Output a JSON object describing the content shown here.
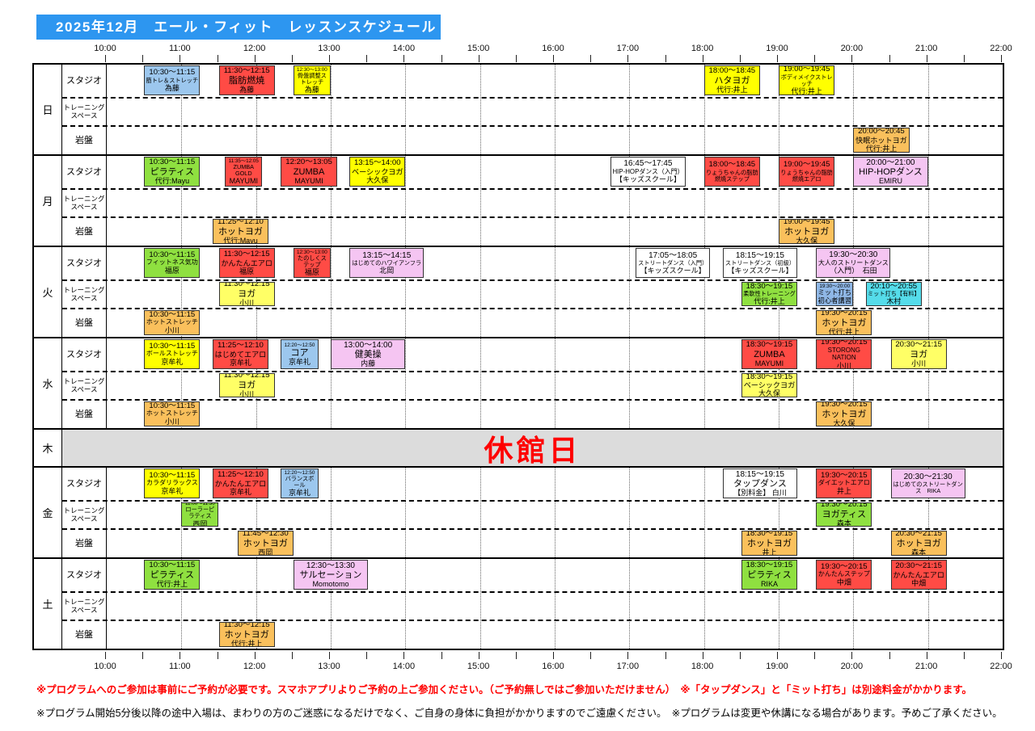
{
  "title": "2025年12月　エール・フィット　レッスンスケジュール",
  "axis": {
    "hours": [
      "10:00",
      "11:00",
      "12:00",
      "13:00",
      "14:00",
      "15:00",
      "16:00",
      "17:00",
      "18:00",
      "19:00",
      "20:00",
      "21:00",
      "22:00"
    ]
  },
  "rooms": [
    {
      "key": "studio",
      "label": "スタジオ"
    },
    {
      "key": "training",
      "label": "トレーニング\nスペース"
    },
    {
      "key": "ganban",
      "label": "岩盤"
    }
  ],
  "closed_label": "休館日",
  "colors": {
    "banner": "#2D96F0",
    "blue": "#9CC7EE",
    "periwinkle": "#8FB7E6",
    "red": "#FF4B45",
    "yellow": "#FFFF00",
    "paleyellow": "#FFFF66",
    "orange": "#FAC05C",
    "green": "#8FE040",
    "pink": "#F5C5F2",
    "cyan": "#55DCEA",
    "white": "#FFFFFF",
    "closed_bg": "#DCDCDC",
    "closed_text": "#FF0000",
    "note_warning": "#FF0000",
    "note_normal": "#000000"
  },
  "days": [
    {
      "label": "日",
      "closed": false,
      "rows": {
        "studio": [
          {
            "start": "10:30",
            "end": "11:15",
            "time": "10:30～11:15",
            "name": "筋トレ＆ストレッチ",
            "teacher": "為藤",
            "color": "blue"
          },
          {
            "start": "11:30",
            "end": "12:15",
            "time": "11:30～12:15",
            "name": "脂肪燃焼",
            "teacher": "為藤",
            "color": "red"
          },
          {
            "start": "12:30",
            "end": "13:00",
            "time": "12:30～13:00",
            "name": "骨盤調整ストレッチ",
            "teacher": "為藤",
            "color": "yellow"
          },
          {
            "start": "18:00",
            "end": "18:45",
            "time": "18:00～18:45",
            "name": "ハタヨガ",
            "teacher": "代行:井上",
            "color": "yellow"
          },
          {
            "start": "19:00",
            "end": "19:45",
            "time": "19:00～19:45",
            "name": "ボディメイクストレッチ",
            "teacher": "代行:井上",
            "color": "yellow"
          }
        ],
        "training": [],
        "ganban": [
          {
            "start": "20:00",
            "end": "20:45",
            "time": "20:00～20:45",
            "name": "快眠ホットヨガ",
            "teacher": "代行:井上",
            "color": "orange"
          }
        ]
      }
    },
    {
      "label": "月",
      "closed": false,
      "rows": {
        "studio": [
          {
            "start": "10:30",
            "end": "11:15",
            "time": "10:30～11:15",
            "name": "ピラティス",
            "teacher": "代行:Mayu",
            "color": "green"
          },
          {
            "start": "11:35",
            "end": "12:05",
            "time": "11:35～12:05",
            "name": "ZUMBA GOLD",
            "teacher": "MAYUMI",
            "color": "red"
          },
          {
            "start": "12:20",
            "end": "13:05",
            "time": "12:20～13:05",
            "name": "ZUMBA",
            "teacher": "MAYUMI",
            "color": "red"
          },
          {
            "start": "13:15",
            "end": "14:00",
            "time": "13:15～14:00",
            "name": "ベーシックヨガ",
            "teacher": "大久保",
            "color": "yellow"
          },
          {
            "start": "16:45",
            "end": "17:45",
            "time": "16:45～17:45",
            "name": "HIP-HOPダンス（入門）",
            "teacher": "【キッズスクール】",
            "color": "white"
          },
          {
            "start": "18:00",
            "end": "18:45",
            "time": "18:00～18:45",
            "name": "りょうちゃんの脂肪燃焼ステップ",
            "teacher": "",
            "color": "red"
          },
          {
            "start": "19:00",
            "end": "19:45",
            "time": "19:00～19:45",
            "name": "りょうちゃんの脂肪燃焼エアロ",
            "teacher": "",
            "color": "red"
          },
          {
            "start": "20:00",
            "end": "21:00",
            "time": "20:00～21:00",
            "name": "HIP-HOPダンス",
            "teacher": "EMIRU",
            "color": "pink"
          }
        ],
        "training": [],
        "ganban": [
          {
            "start": "11:25",
            "end": "12:10",
            "time": "11:25～12:10",
            "name": "ホットヨガ",
            "teacher": "代行:Mayu",
            "color": "orange"
          },
          {
            "start": "19:00",
            "end": "19:45",
            "time": "19:00～19:45",
            "name": "ホットヨガ",
            "teacher": "大久保",
            "color": "orange"
          }
        ]
      }
    },
    {
      "label": "火",
      "closed": false,
      "rows": {
        "studio": [
          {
            "start": "10:30",
            "end": "11:15",
            "time": "10:30～11:15",
            "name": "フィットネス気功",
            "teacher": "福原",
            "color": "green"
          },
          {
            "start": "11:30",
            "end": "12:15",
            "time": "11:30～12:15",
            "name": "かんたんエアロ",
            "teacher": "福原",
            "color": "red"
          },
          {
            "start": "12:30",
            "end": "13:00",
            "time": "12:30～13:00",
            "name": "たのしくステップ",
            "teacher": "福原",
            "color": "red"
          },
          {
            "start": "13:15",
            "end": "14:15",
            "time": "13:15～14:15",
            "name": "はじめてのハワイアンフラ",
            "teacher": "北岡",
            "color": "pink"
          },
          {
            "start": "17:05",
            "end": "18:05",
            "time": "17:05～18:05",
            "name": "ストリートダンス（入門）",
            "teacher": "【キッズスクール】",
            "color": "white"
          },
          {
            "start": "18:15",
            "end": "19:15",
            "time": "18:15～19:15",
            "name": "ストリートダンス（初級）",
            "teacher": "【キッズスクール】",
            "color": "white"
          },
          {
            "start": "19:30",
            "end": "20:30",
            "time": "19:30～20:30",
            "name": "大人のストリートダンス",
            "teacher": "（入門）　石田",
            "color": "pink"
          }
        ],
        "training": [
          {
            "start": "11:30",
            "end": "12:15",
            "time": "11:30～12:15",
            "name": "ヨガ",
            "teacher": "小川",
            "color": "paleyellow"
          },
          {
            "start": "18:30",
            "end": "19:15",
            "time": "18:30～19:15",
            "name": "柔軟性トレーニング",
            "teacher": "代行:井上",
            "color": "green"
          },
          {
            "start": "19:30",
            "end": "20:00",
            "time": "19:30～20:00",
            "name": "ミット打ち",
            "teacher": "初心者講習",
            "color": "periwinkle"
          },
          {
            "start": "20:10",
            "end": "20:55",
            "time": "20:10～20:55",
            "name": "ミット打ち【有料】",
            "teacher": "木村",
            "color": "cyan"
          }
        ],
        "ganban": [
          {
            "start": "10:30",
            "end": "11:15",
            "time": "10:30～11:15",
            "name": "ホットストレッチ",
            "teacher": "小川",
            "color": "orange"
          },
          {
            "start": "19:30",
            "end": "20:15",
            "time": "19:30～20:15",
            "name": "ホットヨガ",
            "teacher": "代行:井上",
            "color": "orange"
          }
        ]
      }
    },
    {
      "label": "水",
      "closed": false,
      "rows": {
        "studio": [
          {
            "start": "10:30",
            "end": "11:15",
            "time": "10:30～11:15",
            "name": "ボールストレッチ",
            "teacher": "京牟礼",
            "color": "yellow"
          },
          {
            "start": "11:25",
            "end": "12:10",
            "time": "11:25～12:10",
            "name": "はじめてエアロ",
            "teacher": "京牟礼",
            "color": "red"
          },
          {
            "start": "12:20",
            "end": "12:50",
            "time": "12:20～12:50",
            "name": "コア",
            "teacher": "京牟礼",
            "color": "blue"
          },
          {
            "start": "13:00",
            "end": "14:00",
            "time": "13:00～14:00",
            "name": "健美操",
            "teacher": "内藤",
            "color": "pink"
          },
          {
            "start": "18:30",
            "end": "19:15",
            "time": "18:30～19:15",
            "name": "ZUMBA",
            "teacher": "MAYUMI",
            "color": "red"
          },
          {
            "start": "19:30",
            "end": "20:15",
            "time": "19:30～20:15",
            "name": "STORONG NATION",
            "teacher": "小川",
            "color": "red"
          },
          {
            "start": "20:30",
            "end": "21:15",
            "time": "20:30～21:15",
            "name": "ヨガ",
            "teacher": "小川",
            "color": "paleyellow"
          }
        ],
        "training": [
          {
            "start": "11:30",
            "end": "12:15",
            "time": "11:30～12:15",
            "name": "ヨガ",
            "teacher": "小川",
            "color": "paleyellow"
          },
          {
            "start": "18:30",
            "end": "19:15",
            "time": "18:30～19:15",
            "name": "ベーシックヨガ",
            "teacher": "大久保",
            "color": "paleyellow"
          }
        ],
        "ganban": [
          {
            "start": "10:30",
            "end": "11:15",
            "time": "10:30～11:15",
            "name": "ホットストレッチ",
            "teacher": "小川",
            "color": "orange"
          },
          {
            "start": "19:30",
            "end": "20:15",
            "time": "19:30～20:15",
            "name": "ホットヨガ",
            "teacher": "大久保",
            "color": "orange"
          }
        ]
      }
    },
    {
      "label": "木",
      "closed": true
    },
    {
      "label": "金",
      "closed": false,
      "rows": {
        "studio": [
          {
            "start": "10:30",
            "end": "11:15",
            "time": "10:30～11:15",
            "name": "カラダリラックス",
            "teacher": "京牟礼",
            "color": "yellow"
          },
          {
            "start": "11:25",
            "end": "12:10",
            "time": "11:25～12:10",
            "name": "かんたんエアロ",
            "teacher": "京牟礼",
            "color": "red"
          },
          {
            "start": "12:20",
            "end": "12:50",
            "time": "12:20～12:50",
            "name": "バランスボール",
            "teacher": "京牟礼",
            "color": "blue"
          },
          {
            "start": "18:15",
            "end": "19:15",
            "time": "18:15～19:15",
            "name": "タップダンス",
            "teacher": "【別料金】 白川",
            "color": "white"
          },
          {
            "start": "19:30",
            "end": "20:15",
            "time": "19:30～20:15",
            "name": "ダイエットエアロ",
            "teacher": "井上",
            "color": "red"
          },
          {
            "start": "20:30",
            "end": "21:30",
            "time": "20:30～21:30",
            "name": "はじめてのストリートダンス　RIKA",
            "teacher": "",
            "color": "pink"
          }
        ],
        "training": [
          {
            "start": "11:00",
            "end": "11:30",
            "time": "11:00～11:30",
            "name": "ローラーピラティス",
            "teacher": "西岡",
            "color": "green"
          },
          {
            "start": "19:30",
            "end": "20:15",
            "time": "19:30～20:15",
            "name": "ヨガティス",
            "teacher": "森本",
            "color": "green"
          }
        ],
        "ganban": [
          {
            "start": "11:45",
            "end": "12:30",
            "time": "11:45～12:30",
            "name": "ホットヨガ",
            "teacher": "西岡",
            "color": "orange"
          },
          {
            "start": "18:30",
            "end": "19:15",
            "time": "18:30～19:15",
            "name": "ホットヨガ",
            "teacher": "井上",
            "color": "orange"
          },
          {
            "start": "20:30",
            "end": "21:15",
            "time": "20:30～21:15",
            "name": "ホットヨガ",
            "teacher": "森本",
            "color": "orange"
          }
        ]
      }
    },
    {
      "label": "土",
      "closed": false,
      "rows": {
        "studio": [
          {
            "start": "10:30",
            "end": "11:15",
            "time": "10:30～11:15",
            "name": "ピラティス",
            "teacher": "代行:井上",
            "color": "green"
          },
          {
            "start": "12:30",
            "end": "13:30",
            "time": "12:30～13:30",
            "name": "サルセーション",
            "teacher": "Momotomo",
            "color": "pink"
          },
          {
            "start": "18:30",
            "end": "19:15",
            "time": "18:30～19:15",
            "name": "ピラティス",
            "teacher": "RIKA",
            "color": "green"
          },
          {
            "start": "19:30",
            "end": "20:15",
            "time": "19:30～20:15",
            "name": "かんたんステップ",
            "teacher": "中畑",
            "color": "red"
          },
          {
            "start": "20:30",
            "end": "21:15",
            "time": "20:30～21:15",
            "name": "かんたんエアロ",
            "teacher": "中畑",
            "color": "red"
          }
        ],
        "training": [],
        "ganban": [
          {
            "start": "11:30",
            "end": "12:15",
            "time": "11:30～12:15",
            "name": "ホットヨガ",
            "teacher": "代行:井上",
            "color": "orange"
          }
        ]
      }
    }
  ],
  "notes": [
    "※プログラムへのご参加は事前にご予約が必要です。スマホアプリよりご予約の上ご参加ください。（ご予約無しではご参加いただけません）　※「タップダンス」と「ミット打ち」は別途料金がかかります。",
    "※プログラム開始5分後以降の途中入場は、まわりの方のご迷惑になるだけでなく、ご自身の身体に負担がかかりますのでご遠慮ください。　※プログラムは変更や休講になる場合があります。予めご了承ください。"
  ]
}
